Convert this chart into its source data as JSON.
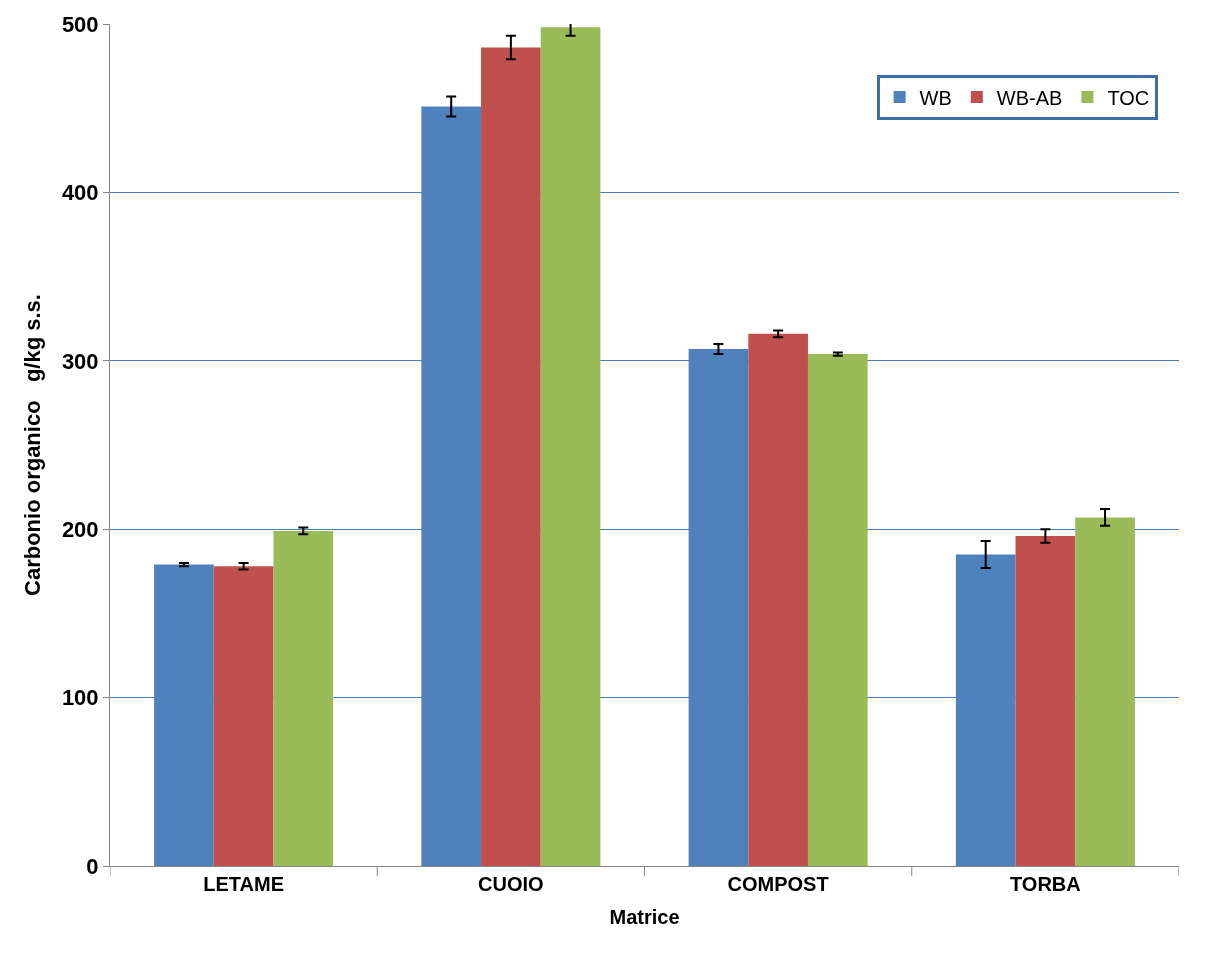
{
  "chart_data": {
    "type": "bar",
    "xlabel": "Matrice",
    "ylabel": "Carbonio organico   g/kg s.s.",
    "categories": [
      "LETAME",
      "CUOIO",
      "COMPOST",
      "TORBA"
    ],
    "series": [
      {
        "name": "WB",
        "color": "#4f81bd",
        "values": [
          179,
          451,
          307,
          185
        ],
        "errors": [
          1,
          6,
          3,
          8
        ]
      },
      {
        "name": "WB-AB",
        "color": "#c0504d",
        "values": [
          178,
          486,
          316,
          196
        ],
        "errors": [
          2,
          7,
          2,
          4
        ]
      },
      {
        "name": "TOC",
        "color": "#9bbb59",
        "values": [
          199,
          498,
          304,
          207
        ],
        "errors": [
          2,
          5,
          1,
          5
        ]
      }
    ],
    "ylim": [
      0,
      500
    ],
    "yticks": [
      0,
      100,
      200,
      300,
      400,
      500
    ],
    "grid": "y",
    "legend": "top right"
  }
}
